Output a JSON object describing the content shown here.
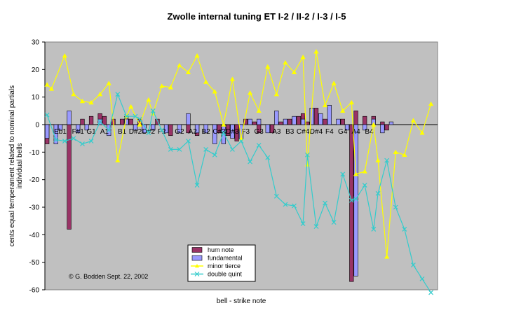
{
  "chart_data": {
    "type": "bar",
    "title": "Zwolle internal tuning ET I-2 / II-2 / I-3 / I-5",
    "xlabel": "bell - strike note",
    "ylabel_lines": [
      "cents equal temperament related to nominal partials",
      "individual bells"
    ],
    "ylim": [
      -60,
      30
    ],
    "yticks": [
      30,
      20,
      10,
      0,
      -10,
      -20,
      -30,
      -40,
      -50,
      -60
    ],
    "grid": false,
    "legend_position": "bottom-center",
    "annotation": "© G. Bodden Sept. 22, 2002",
    "x_tick_labels": [
      {
        "i": 3,
        "label": "Eb1"
      },
      {
        "i": 7,
        "label": "F#1"
      },
      {
        "i": 10,
        "label": "G1"
      },
      {
        "i": 13,
        "label": "A1"
      },
      {
        "i": 17,
        "label": "B1"
      },
      {
        "i": 20,
        "label": "D#2"
      },
      {
        "i": 23,
        "label": "D#2"
      },
      {
        "i": 26,
        "label": "F2"
      },
      {
        "i": 30,
        "label": "G2"
      },
      {
        "i": 33,
        "label": "A2"
      },
      {
        "i": 36,
        "label": "B2"
      },
      {
        "i": 39,
        "label": "C#3"
      },
      {
        "i": 42,
        "label": "D#3"
      },
      {
        "i": 45,
        "label": "F3"
      },
      {
        "i": 48,
        "label": "G3"
      },
      {
        "i": 52,
        "label": "A3"
      },
      {
        "i": 55,
        "label": "B3"
      },
      {
        "i": 58,
        "label": "C#4"
      },
      {
        "i": 61,
        "label": "D#4"
      },
      {
        "i": 64,
        "label": "F4"
      },
      {
        "i": 67,
        "label": "G4"
      },
      {
        "i": 70,
        "label": "A4"
      },
      {
        "i": 73,
        "label": "B4"
      }
    ],
    "series": [
      {
        "name": "hum note",
        "type": "bar",
        "color": "#993366",
        "values": [
          -7,
          0,
          0,
          -2,
          0,
          -38,
          0,
          -3,
          2,
          0,
          3,
          0,
          4,
          3,
          0,
          2,
          0,
          2,
          3,
          2,
          -2,
          2,
          -2,
          0,
          -2,
          2,
          0,
          0,
          -4,
          0,
          0,
          0,
          -3,
          0,
          -4,
          0,
          -3,
          0,
          -5,
          -3,
          -5,
          -4,
          -2,
          -6,
          0,
          2,
          0,
          1,
          -3,
          0,
          0,
          -3,
          0,
          1,
          0,
          2,
          0,
          3,
          4,
          1,
          0,
          6,
          0,
          2,
          0,
          0,
          0,
          2,
          0,
          -57,
          5,
          0,
          3,
          0,
          3,
          0,
          1,
          -2,
          0
        ]
      },
      {
        "name": "fundamental",
        "type": "bar",
        "color": "#9999FF",
        "values": [
          -5,
          0,
          -7,
          -2,
          0,
          5,
          0,
          -3,
          0,
          -2,
          0,
          0,
          2,
          0,
          -4,
          0,
          0,
          0,
          2,
          0,
          -2,
          0,
          -3,
          0,
          -2,
          0,
          0,
          -3,
          0,
          0,
          -3,
          0,
          4,
          0,
          -3,
          0,
          -3,
          0,
          -7,
          0,
          -7,
          0,
          -5,
          0,
          -5,
          0,
          2,
          0,
          2,
          0,
          -3,
          0,
          5,
          0,
          2,
          0,
          3,
          0,
          2,
          0,
          6,
          0,
          4,
          0,
          7,
          0,
          2,
          0,
          -2,
          0,
          -55,
          0,
          -2,
          0,
          2,
          0,
          -3,
          0,
          1,
          0
        ]
      },
      {
        "name": "minor tierce",
        "type": "line",
        "color": "#FFFF00",
        "points": [
          [
            0,
            14.5
          ],
          [
            1,
            13
          ],
          [
            4,
            25
          ],
          [
            6,
            11
          ],
          [
            8,
            8.5
          ],
          [
            10,
            8
          ],
          [
            12,
            11
          ],
          [
            14,
            15
          ],
          [
            16,
            -13
          ],
          [
            18,
            3
          ],
          [
            19,
            6.5
          ],
          [
            21,
            0
          ],
          [
            23,
            9
          ],
          [
            24,
            4
          ],
          [
            26,
            14
          ],
          [
            28,
            13.5
          ],
          [
            30,
            21.5
          ],
          [
            32,
            19
          ],
          [
            34,
            25
          ],
          [
            36,
            15.5
          ],
          [
            38,
            12
          ],
          [
            40,
            0
          ],
          [
            42,
            16.5
          ],
          [
            44,
            -5
          ],
          [
            46,
            11.5
          ],
          [
            48,
            5
          ],
          [
            50,
            21
          ],
          [
            52,
            11
          ],
          [
            54,
            22.5
          ],
          [
            56,
            19
          ],
          [
            58,
            24.5
          ],
          [
            59,
            -14.5
          ],
          [
            61,
            26.5
          ],
          [
            63,
            7
          ],
          [
            65,
            15
          ],
          [
            67,
            5
          ],
          [
            69,
            8
          ],
          [
            70,
            -18
          ],
          [
            72,
            -17
          ],
          [
            74,
            0
          ],
          [
            75,
            -13
          ],
          [
            77,
            -48
          ],
          [
            79,
            -10
          ],
          [
            81,
            -11
          ],
          [
            83,
            1.5
          ],
          [
            85,
            -3
          ],
          [
            87,
            7.5
          ]
        ]
      },
      {
        "name": "double quint",
        "type": "line",
        "color": "#33CCCC",
        "points": [
          [
            0,
            3.5
          ],
          [
            2,
            -5.5
          ],
          [
            4,
            -6
          ],
          [
            6,
            -5
          ],
          [
            8,
            -7
          ],
          [
            10,
            -6
          ],
          [
            12,
            1
          ],
          [
            14,
            -2
          ],
          [
            16,
            11
          ],
          [
            18,
            3
          ],
          [
            20,
            3
          ],
          [
            21,
            2
          ],
          [
            23,
            -3
          ],
          [
            24,
            5
          ],
          [
            26,
            -2
          ],
          [
            28,
            -9
          ],
          [
            30,
            -9
          ],
          [
            32,
            -6
          ],
          [
            34,
            -22
          ],
          [
            36,
            -9
          ],
          [
            38,
            -11
          ],
          [
            40,
            -3
          ],
          [
            42,
            -9
          ],
          [
            44,
            -6
          ],
          [
            46,
            -13.5
          ],
          [
            48,
            -7.5
          ],
          [
            50,
            -12
          ],
          [
            52,
            -26
          ],
          [
            54,
            -29
          ],
          [
            56,
            -29.5
          ],
          [
            58,
            -36
          ],
          [
            59,
            -11
          ],
          [
            61,
            -37
          ],
          [
            63,
            -28.5
          ],
          [
            65,
            -35.5
          ],
          [
            67,
            -18
          ],
          [
            69,
            -27.5
          ],
          [
            70,
            -27
          ],
          [
            72,
            -22
          ],
          [
            74,
            -38
          ],
          [
            75,
            -25
          ],
          [
            77,
            -13
          ],
          [
            79,
            -30
          ],
          [
            81,
            -38
          ],
          [
            83,
            -51
          ],
          [
            85,
            -56
          ],
          [
            87,
            -61
          ]
        ]
      }
    ]
  }
}
